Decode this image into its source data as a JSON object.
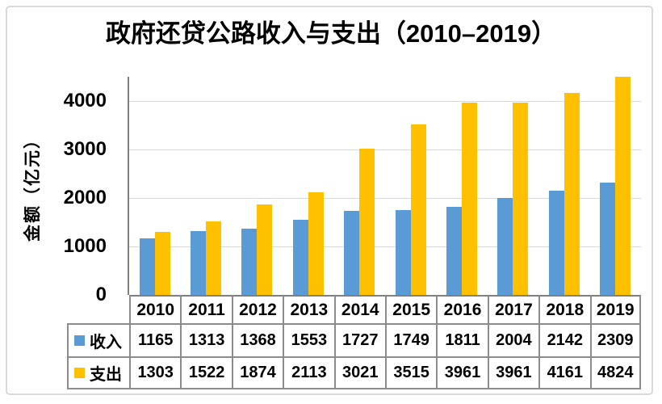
{
  "title": "政府还贷公路收入与支出（2010–2019）",
  "y_axis": {
    "label": "金额（亿元）",
    "ticks": [
      "0",
      "1000",
      "2000",
      "3000",
      "4000"
    ]
  },
  "colors": {
    "income": "#5B9BD5",
    "expense": "#FFC000",
    "gridline": "#D9D9D9",
    "axis": "#808080",
    "table_border": "#8C8C8C",
    "figure_border": "#D9D9D9",
    "text": "#000000",
    "background": "#FFFFFF"
  },
  "chart_data": {
    "type": "bar",
    "title": "政府还贷公路收入与支出（2010–2019）",
    "categories": [
      "2010",
      "2011",
      "2012",
      "2013",
      "2014",
      "2015",
      "2016",
      "2017",
      "2018",
      "2019"
    ],
    "series": [
      {
        "name": "收入",
        "color": "#5B9BD5",
        "values": [
          1165,
          1313,
          1368,
          1553,
          1727,
          1749,
          1811,
          2004,
          2142,
          2309
        ]
      },
      {
        "name": "支出",
        "color": "#FFC000",
        "values": [
          1303,
          1522,
          1874,
          2113,
          3021,
          3515,
          3961,
          3961,
          4161,
          4824
        ]
      }
    ],
    "xlabel": "",
    "ylabel": "金额（亿元）",
    "ylim": [
      0,
      4500
    ],
    "ytick_interval": 1000,
    "grid": true,
    "legend_position": "data-table-left"
  }
}
